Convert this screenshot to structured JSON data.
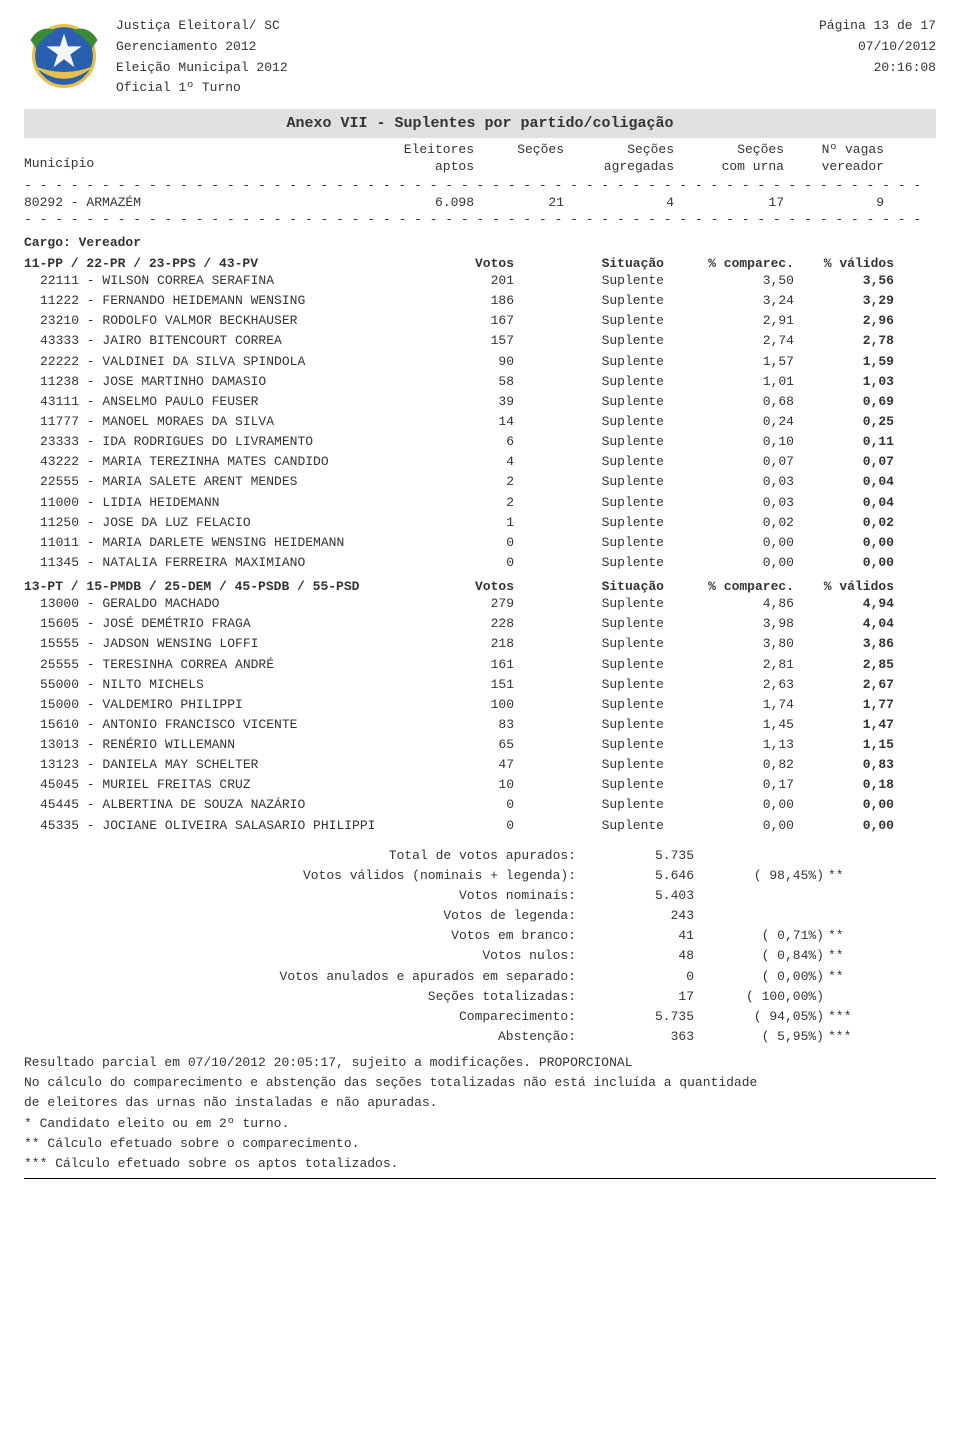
{
  "header": {
    "org": "Justiça Eleitoral/ SC",
    "mgmt": "Gerenciamento 2012",
    "election": "Eleição Municipal 2012",
    "status_line": "Oficial      1º Turno",
    "page": "Página 13 de  17",
    "date": "07/10/2012",
    "time": "20:16:08"
  },
  "title": "Anexo VII - Suplentes por partido/coligação",
  "col_hdr": {
    "municipio": "Município",
    "eleitores_r1": "Eleitores",
    "eleitores_r2": "aptos",
    "secoes": "Seções",
    "secoes_agr_r1": "Seções",
    "secoes_agr_r2": "agregadas",
    "secoes_urna_r1": "Seções",
    "secoes_urna_r2": "com urna",
    "vagas_r1": "Nº vagas",
    "vagas_r2": "vereador"
  },
  "dashes": "- - - - - - - - - - - - - - - - - - - - - - - - - - - - - - - - - - - - - - - - - - - - - - - - - - - - - - - - - -",
  "municipio": {
    "label": "80292 - ARMAZÉM",
    "eleitores": "6.098",
    "secoes": "21",
    "agregadas": "4",
    "com_urna": "17",
    "vagas": "9"
  },
  "cargo": "Cargo: Vereador",
  "grp_cols": {
    "votos": "Votos",
    "situacao": "Situação",
    "comparec": "% comparec.",
    "validos": "% válidos"
  },
  "groups": [
    {
      "label": "11-PP / 22-PR / 23-PPS / 43-PV",
      "cands": [
        {
          "label": "22111 - WILSON CORREA SERAFINA",
          "votos": "201",
          "sit": "Suplente",
          "comp": "3,50",
          "val": "3,56"
        },
        {
          "label": "11222 - FERNANDO HEIDEMANN WENSING",
          "votos": "186",
          "sit": "Suplente",
          "comp": "3,24",
          "val": "3,29"
        },
        {
          "label": "23210 - RODOLFO VALMOR BECKHAUSER",
          "votos": "167",
          "sit": "Suplente",
          "comp": "2,91",
          "val": "2,96"
        },
        {
          "label": "43333 - JAIRO BITENCOURT CORREA",
          "votos": "157",
          "sit": "Suplente",
          "comp": "2,74",
          "val": "2,78"
        },
        {
          "label": "22222 - VALDINEI DA SILVA SPINDOLA",
          "votos": "90",
          "sit": "Suplente",
          "comp": "1,57",
          "val": "1,59"
        },
        {
          "label": "11238 - JOSE MARTINHO DAMASIO",
          "votos": "58",
          "sit": "Suplente",
          "comp": "1,01",
          "val": "1,03"
        },
        {
          "label": "43111 - ANSELMO PAULO FEUSER",
          "votos": "39",
          "sit": "Suplente",
          "comp": "0,68",
          "val": "0,69"
        },
        {
          "label": "11777 - MANOEL MORAES DA SILVA",
          "votos": "14",
          "sit": "Suplente",
          "comp": "0,24",
          "val": "0,25"
        },
        {
          "label": "23333 - IDA RODRIGUES DO LIVRAMENTO",
          "votos": "6",
          "sit": "Suplente",
          "comp": "0,10",
          "val": "0,11"
        },
        {
          "label": "43222 - MARIA TEREZINHA MATES CANDIDO",
          "votos": "4",
          "sit": "Suplente",
          "comp": "0,07",
          "val": "0,07"
        },
        {
          "label": "22555 - MARIA SALETE ARENT MENDES",
          "votos": "2",
          "sit": "Suplente",
          "comp": "0,03",
          "val": "0,04"
        },
        {
          "label": "11000 - LIDIA HEIDEMANN",
          "votos": "2",
          "sit": "Suplente",
          "comp": "0,03",
          "val": "0,04"
        },
        {
          "label": "11250 - JOSE DA LUZ FELACIO",
          "votos": "1",
          "sit": "Suplente",
          "comp": "0,02",
          "val": "0,02"
        },
        {
          "label": "11011 - MARIA DARLETE WENSING HEIDEMANN",
          "votos": "0",
          "sit": "Suplente",
          "comp": "0,00",
          "val": "0,00"
        },
        {
          "label": "11345 - NATALIA FERREIRA MAXIMIANO",
          "votos": "0",
          "sit": "Suplente",
          "comp": "0,00",
          "val": "0,00"
        }
      ]
    },
    {
      "label": "13-PT / 15-PMDB / 25-DEM / 45-PSDB / 55-PSD",
      "cands": [
        {
          "label": "13000 - GERALDO MACHADO",
          "votos": "279",
          "sit": "Suplente",
          "comp": "4,86",
          "val": "4,94"
        },
        {
          "label": "15605 - JOSÉ DEMÉTRIO FRAGA",
          "votos": "228",
          "sit": "Suplente",
          "comp": "3,98",
          "val": "4,04"
        },
        {
          "label": "15555 - JADSON WENSING LOFFI",
          "votos": "218",
          "sit": "Suplente",
          "comp": "3,80",
          "val": "3,86"
        },
        {
          "label": "25555 - TERESINHA CORREA ANDRÉ",
          "votos": "161",
          "sit": "Suplente",
          "comp": "2,81",
          "val": "2,85"
        },
        {
          "label": "55000 - NILTO MICHELS",
          "votos": "151",
          "sit": "Suplente",
          "comp": "2,63",
          "val": "2,67"
        },
        {
          "label": "15000 - VALDEMIRO PHILIPPI",
          "votos": "100",
          "sit": "Suplente",
          "comp": "1,74",
          "val": "1,77"
        },
        {
          "label": "15610 - ANTONIO FRANCISCO VICENTE",
          "votos": "83",
          "sit": "Suplente",
          "comp": "1,45",
          "val": "1,47"
        },
        {
          "label": "13013 - RENÉRIO WILLEMANN",
          "votos": "65",
          "sit": "Suplente",
          "comp": "1,13",
          "val": "1,15"
        },
        {
          "label": "13123 - DANIELA MAY SCHELTER",
          "votos": "47",
          "sit": "Suplente",
          "comp": "0,82",
          "val": "0,83"
        },
        {
          "label": "45045 - MURIEL FREITAS CRUZ",
          "votos": "10",
          "sit": "Suplente",
          "comp": "0,17",
          "val": "0,18"
        },
        {
          "label": "45445 - ALBERTINA DE SOUZA NAZÁRIO",
          "votos": "0",
          "sit": "Suplente",
          "comp": "0,00",
          "val": "0,00"
        },
        {
          "label": "45335 - JOCIANE OLIVEIRA SALASARIO PHILIPPI",
          "votos": "0",
          "sit": "Suplente",
          "comp": "0,00",
          "val": "0,00"
        }
      ]
    }
  ],
  "totals": [
    {
      "label": "Total de votos apurados:",
      "val": "5.735",
      "pct": "",
      "star": ""
    },
    {
      "label": "Votos válidos (nominais + legenda):",
      "val": "5.646",
      "pct": "(  98,45%)",
      "star": "**"
    },
    {
      "label": "Votos nominais:",
      "val": "5.403",
      "pct": "",
      "star": ""
    },
    {
      "label": "Votos de legenda:",
      "val": "243",
      "pct": "",
      "star": ""
    },
    {
      "label": "Votos em branco:",
      "val": "41",
      "pct": "(   0,71%)",
      "star": "**"
    },
    {
      "label": "Votos nulos:",
      "val": "48",
      "pct": "(   0,84%)",
      "star": "**"
    },
    {
      "label": "Votos anulados e apurados em separado:",
      "val": "0",
      "pct": "(   0,00%)",
      "star": "**"
    },
    {
      "label": "Seções totalizadas:",
      "val": "17",
      "pct": "( 100,00%)",
      "star": ""
    },
    {
      "label": "Comparecimento:",
      "val": "5.735",
      "pct": "(  94,05%)",
      "star": "***"
    },
    {
      "label": "Abstenção:",
      "val": "363",
      "pct": "(   5,95%)",
      "star": "***"
    }
  ],
  "footer": {
    "l1": "Resultado parcial em 07/10/2012 20:05:17, sujeito a modificações. PROPORCIONAL",
    "l2": "No cálculo do comparecimento e abstenção das seções totalizadas não está incluída a quantidade",
    "l3": "de eleitores das urnas não instaladas e não apuradas.",
    "l4": "* Candidato eleito ou em 2º turno.",
    "l5": "** Cálculo efetuado sobre o comparecimento.",
    "l6": "*** Cálculo efetuado sobre os aptos totalizados."
  },
  "colors": {
    "band_bg": "#e0e0e0",
    "text": "#333333"
  }
}
